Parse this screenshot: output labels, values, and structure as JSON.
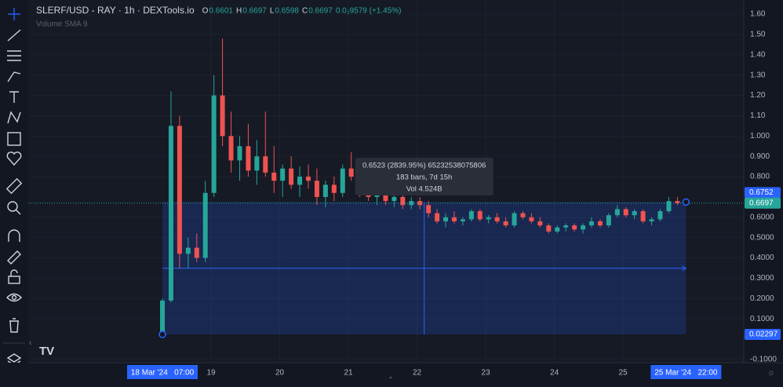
{
  "chart_data": {
    "type": "candlestick",
    "title": "SLERF/USD - RAY · 1h · DEXTools.io",
    "ohlc_legend": [
      {
        "key": "O",
        "text": "0.6601"
      },
      {
        "key": "H",
        "text": "0.6697"
      },
      {
        "key": "L",
        "text": "0.6598"
      },
      {
        "key": "C",
        "text": "0.6697"
      }
    ],
    "change_label": "0.0₂9579 (+1.45%)",
    "indicator": "Volume SMA 9",
    "up_color": "#26a69a",
    "down_color": "#ef5350",
    "x": [
      7,
      10,
      13,
      16,
      19,
      22,
      25,
      28,
      31,
      34,
      37,
      40,
      43,
      46,
      49,
      52,
      55,
      58,
      61,
      64,
      67,
      70,
      73,
      76,
      79,
      82,
      85,
      88,
      91,
      94,
      97,
      100,
      103,
      106,
      109,
      112,
      115,
      118,
      121,
      124,
      127,
      130,
      133,
      136,
      139,
      142,
      145,
      148,
      151,
      154,
      157,
      160,
      163,
      166,
      169,
      172,
      175,
      178,
      181,
      184,
      187,
      190
    ],
    "open": [
      0.023,
      0.19,
      1.05,
      0.42,
      0.45,
      0.4,
      0.72,
      1.2,
      1.0,
      0.88,
      0.95,
      0.83,
      0.9,
      0.82,
      0.78,
      0.84,
      0.76,
      0.8,
      0.78,
      0.7,
      0.76,
      0.72,
      0.84,
      0.8,
      0.72,
      0.7,
      0.72,
      0.68,
      0.7,
      0.66,
      0.68,
      0.66,
      0.62,
      0.58,
      0.6,
      0.58,
      0.59,
      0.63,
      0.59,
      0.6,
      0.58,
      0.56,
      0.62,
      0.6,
      0.58,
      0.56,
      0.53,
      0.55,
      0.56,
      0.54,
      0.56,
      0.58,
      0.56,
      0.61,
      0.64,
      0.61,
      0.63,
      0.58,
      0.59,
      0.63,
      0.68,
      0.6601
    ],
    "high": [
      0.2,
      1.22,
      1.1,
      0.5,
      0.52,
      0.78,
      1.3,
      1.48,
      1.12,
      1.0,
      1.06,
      0.98,
      1.12,
      0.95,
      0.86,
      0.9,
      0.85,
      0.86,
      0.84,
      0.78,
      0.8,
      0.86,
      0.92,
      0.84,
      0.78,
      0.76,
      0.75,
      0.74,
      0.73,
      0.7,
      0.7,
      0.68,
      0.64,
      0.62,
      0.63,
      0.6,
      0.64,
      0.64,
      0.61,
      0.62,
      0.6,
      0.63,
      0.63,
      0.62,
      0.6,
      0.57,
      0.56,
      0.57,
      0.57,
      0.57,
      0.6,
      0.59,
      0.62,
      0.66,
      0.65,
      0.64,
      0.64,
      0.6,
      0.64,
      0.7,
      0.7,
      0.6697
    ],
    "low": [
      0.02,
      0.18,
      0.35,
      0.35,
      0.38,
      0.38,
      0.7,
      0.95,
      0.82,
      0.78,
      0.8,
      0.76,
      0.8,
      0.72,
      0.7,
      0.74,
      0.7,
      0.74,
      0.66,
      0.65,
      0.68,
      0.7,
      0.78,
      0.7,
      0.68,
      0.66,
      0.66,
      0.65,
      0.64,
      0.64,
      0.64,
      0.6,
      0.57,
      0.55,
      0.57,
      0.56,
      0.58,
      0.58,
      0.57,
      0.57,
      0.55,
      0.55,
      0.59,
      0.57,
      0.55,
      0.52,
      0.52,
      0.53,
      0.53,
      0.52,
      0.55,
      0.55,
      0.55,
      0.6,
      0.6,
      0.59,
      0.57,
      0.56,
      0.58,
      0.62,
      0.66,
      0.6598
    ],
    "close": [
      0.19,
      1.05,
      0.42,
      0.45,
      0.4,
      0.72,
      1.2,
      1.0,
      0.88,
      0.95,
      0.83,
      0.9,
      0.82,
      0.78,
      0.84,
      0.76,
      0.8,
      0.78,
      0.7,
      0.76,
      0.72,
      0.84,
      0.8,
      0.72,
      0.7,
      0.72,
      0.68,
      0.7,
      0.66,
      0.68,
      0.66,
      0.62,
      0.58,
      0.6,
      0.58,
      0.59,
      0.63,
      0.59,
      0.6,
      0.58,
      0.56,
      0.62,
      0.6,
      0.58,
      0.56,
      0.53,
      0.55,
      0.56,
      0.54,
      0.56,
      0.58,
      0.56,
      0.61,
      0.64,
      0.61,
      0.63,
      0.58,
      0.59,
      0.63,
      0.68,
      0.67,
      0.6697
    ],
    "xlim": [
      -39.9,
      210.2
    ],
    "ylim": [
      -0.116,
      1.67
    ],
    "yticks": [
      {
        "value": 1.6,
        "label": "1.60"
      },
      {
        "value": 1.5,
        "label": "1.50"
      },
      {
        "value": 1.4,
        "label": "1.40"
      },
      {
        "value": 1.3,
        "label": "1.30"
      },
      {
        "value": 1.2,
        "label": "1.20"
      },
      {
        "value": 1.1,
        "label": "1.10"
      },
      {
        "value": 1.0,
        "label": "1.000"
      },
      {
        "value": 0.9,
        "label": "0.900"
      },
      {
        "value": 0.8,
        "label": "0.800"
      },
      {
        "value": 0.6,
        "label": "0.6000"
      },
      {
        "value": 0.5,
        "label": "0.5000"
      },
      {
        "value": 0.4,
        "label": "0.4000"
      },
      {
        "value": 0.3,
        "label": "0.3000"
      },
      {
        "value": 0.2,
        "label": "0.2000"
      },
      {
        "value": 0.1,
        "label": "0.1000"
      },
      {
        "value": -0.1,
        "label": "-0.1000"
      }
    ],
    "xticks": [
      {
        "value": 24,
        "label": "19"
      },
      {
        "value": 48,
        "label": "20"
      },
      {
        "value": 72,
        "label": "21"
      },
      {
        "value": 96,
        "label": "22"
      },
      {
        "value": 120,
        "label": "23"
      },
      {
        "value": 144,
        "label": "24"
      },
      {
        "value": 168,
        "label": "25"
      }
    ],
    "range_start": {
      "value": 7,
      "label": "18 Mar '24   07:00"
    },
    "range_end": {
      "value": 190,
      "label": "25 Mar '24   22:00"
    },
    "price_labels": [
      {
        "value": 0.6752,
        "label": "0.6752"
      },
      {
        "value": 0.6697,
        "label": "0.6697"
      },
      {
        "value": 0.02297,
        "label": "0.02297"
      }
    ],
    "measure": {
      "lines": [
        "0.6523 (2839.95%) 65232538075806",
        "183 bars, 7d 15h",
        "Vol 4.524B"
      ]
    },
    "grid": true
  }
}
